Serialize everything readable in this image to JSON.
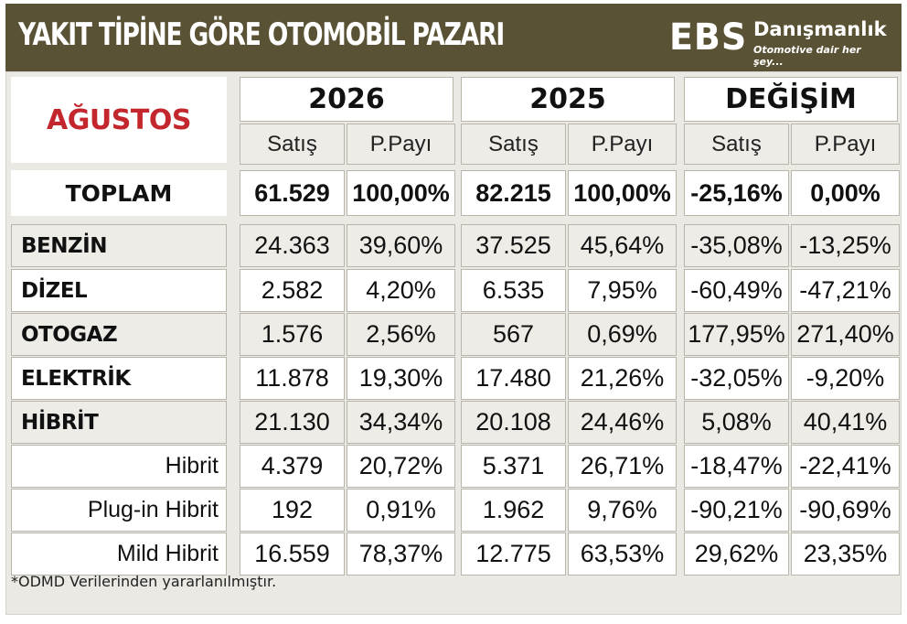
{
  "header": {
    "title": "YAKIT TİPİNE GÖRE OTOMOBİL PAZARI",
    "logo_mark": "EBS",
    "logo_name": "Danışmanlık",
    "logo_tagline": "Otomotive dair her şey..."
  },
  "table": {
    "month": "AĞUSTOS",
    "groups": [
      "2026",
      "2025",
      "DEĞİŞİM"
    ],
    "sub_headers": [
      "Satış",
      "P.Payı",
      "Satış",
      "P.Payı",
      "Satış",
      "P.Payı"
    ],
    "total": {
      "label": "TOPLAM",
      "values": [
        "61.529",
        "100,00%",
        "82.215",
        "100,00%",
        "-25,16%",
        "0,00%"
      ]
    },
    "rows": [
      {
        "label": "BENZİN",
        "values": [
          "24.363",
          "39,60%",
          "37.525",
          "45,64%",
          "-35,08%",
          "-13,25%"
        ]
      },
      {
        "label": "DİZEL",
        "values": [
          "2.582",
          "4,20%",
          "6.535",
          "7,95%",
          "-60,49%",
          "-47,21%"
        ]
      },
      {
        "label": "OTOGAZ",
        "values": [
          "1.576",
          "2,56%",
          "567",
          "0,69%",
          "177,95%",
          "271,40%"
        ]
      },
      {
        "label": "ELEKTRİK",
        "values": [
          "11.878",
          "19,30%",
          "17.480",
          "21,26%",
          "-32,05%",
          "-9,20%"
        ]
      },
      {
        "label": "HİBRİT",
        "values": [
          "21.130",
          "34,34%",
          "20.108",
          "24,46%",
          "5,08%",
          "40,41%"
        ]
      }
    ],
    "sub_rows": [
      {
        "label": "Hibrit",
        "values": [
          "4.379",
          "20,72%",
          "5.371",
          "26,71%",
          "-18,47%",
          "-22,41%"
        ]
      },
      {
        "label": "Plug-in Hibrit",
        "values": [
          "192",
          "0,91%",
          "1.962",
          "9,76%",
          "-90,21%",
          "-90,69%"
        ]
      },
      {
        "label": "Mild Hibrit",
        "values": [
          "16.559",
          "78,37%",
          "12.775",
          "63,53%",
          "29,62%",
          "23,35%"
        ]
      }
    ]
  },
  "footnote": "*ODMD Verilerinden yararlanılmıştır.",
  "colors": {
    "header_bg": "#5a5234",
    "month_text": "#c3262c",
    "panel_bg": "#ebe9e4",
    "shaded_row": "#eeece7"
  }
}
